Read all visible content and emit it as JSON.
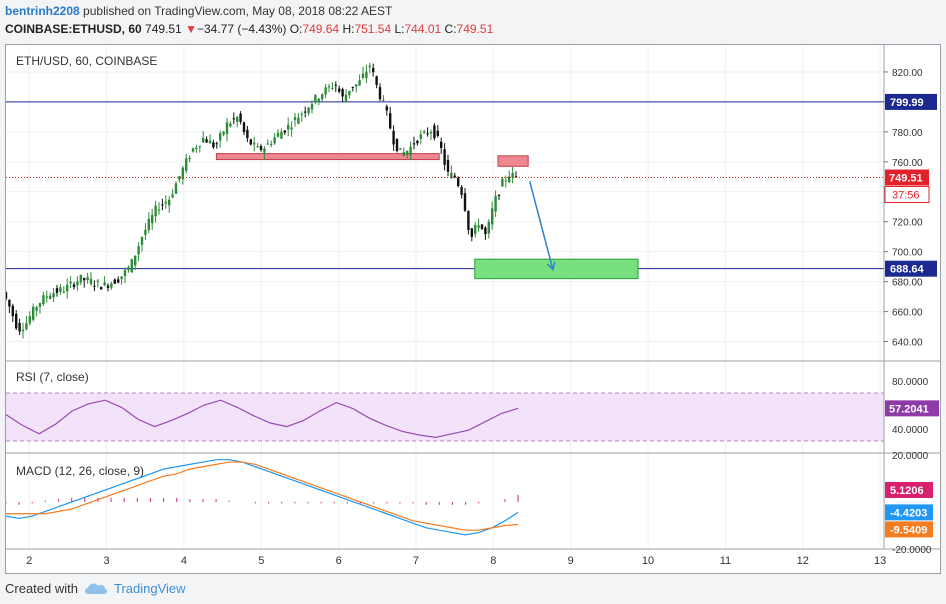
{
  "header": {
    "author": "bentrinh2208",
    "published_text": "published on TradingView.com, May 08, 2018 08:22 AEST",
    "symbol_line": "COINBASE:ETHUSD, 60",
    "last": "749.51",
    "change_arrow": "▼",
    "change": "−34.77 (−4.43%)",
    "o_label": "O:",
    "o": "749.64",
    "h_label": "H:",
    "h": "751.54",
    "l_label": "L:",
    "l": "744.01",
    "c_label": "C:",
    "c": "749.51"
  },
  "footer": {
    "created_with": "Created with",
    "brand": "TradingView"
  },
  "colors": {
    "up": "#2e8b3a",
    "down": "#111111",
    "level_line": "#1c2a8f",
    "support_zone": "#79e07f",
    "resistance_zone": "#f0868f",
    "arrow": "#2e7fd0",
    "rsi": "#9a4bb0",
    "rsi_band": "#f2e3fb",
    "macd": "#2196f3",
    "signal": "#f57c1f",
    "hist": "#d9499a",
    "price_tag": "#e3212b"
  },
  "chart_data": [
    {
      "type": "candlestick",
      "title": "ETH/USD, 60, COINBASE",
      "x_ticks": [
        "2",
        "3",
        "4",
        "5",
        "6",
        "7",
        "8",
        "9",
        "10",
        "11",
        "12",
        "13"
      ],
      "x_range": [
        1.7,
        13.05
      ],
      "y_ticks": [
        "640.00",
        "660.00",
        "680.00",
        "700.00",
        "720.00",
        "740.00",
        "760.00",
        "780.00",
        "800.00",
        "820.00"
      ],
      "ylim": [
        627,
        838
      ],
      "price_path": [
        [
          1.7,
          673
        ],
        [
          1.8,
          662
        ],
        [
          1.9,
          648
        ],
        [
          2.0,
          652
        ],
        [
          2.15,
          665
        ],
        [
          2.3,
          672
        ],
        [
          2.5,
          675
        ],
        [
          2.7,
          682
        ],
        [
          2.85,
          680
        ],
        [
          3.0,
          677
        ],
        [
          3.2,
          682
        ],
        [
          3.35,
          690
        ],
        [
          3.5,
          710
        ],
        [
          3.7,
          730
        ],
        [
          3.85,
          735
        ],
        [
          4.0,
          752
        ],
        [
          4.15,
          768
        ],
        [
          4.3,
          776
        ],
        [
          4.45,
          770
        ],
        [
          4.6,
          785
        ],
        [
          4.75,
          790
        ],
        [
          4.85,
          775
        ],
        [
          5.0,
          768
        ],
        [
          5.1,
          770
        ],
        [
          5.25,
          778
        ],
        [
          5.4,
          784
        ],
        [
          5.55,
          792
        ],
        [
          5.7,
          800
        ],
        [
          5.85,
          807
        ],
        [
          6.0,
          812
        ],
        [
          6.1,
          802
        ],
        [
          6.2,
          810
        ],
        [
          6.3,
          812
        ],
        [
          6.45,
          825
        ],
        [
          6.55,
          808
        ],
        [
          6.65,
          795
        ],
        [
          6.75,
          775
        ],
        [
          6.85,
          765
        ],
        [
          6.95,
          768
        ],
        [
          7.05,
          775
        ],
        [
          7.15,
          778
        ],
        [
          7.25,
          782
        ],
        [
          7.35,
          772
        ],
        [
          7.45,
          752
        ],
        [
          7.55,
          750
        ],
        [
          7.65,
          738
        ],
        [
          7.75,
          708
        ],
        [
          7.85,
          720
        ],
        [
          7.95,
          710
        ],
        [
          8.05,
          732
        ],
        [
          8.15,
          745
        ],
        [
          8.25,
          752
        ],
        [
          8.32,
          749.51
        ]
      ],
      "levels": [
        {
          "label": "799.99",
          "value": 799.99
        },
        {
          "label": "688.64",
          "value": 688.64
        }
      ],
      "last_price": {
        "label": "749.51",
        "value": 749.51
      },
      "countdown": "37:56",
      "zones": [
        {
          "kind": "resistance",
          "x1": 4.42,
          "x2": 7.3,
          "y1": 761.5,
          "y2": 765.5
        },
        {
          "kind": "support",
          "x1": 7.76,
          "x2": 9.87,
          "y1": 682,
          "y2": 695
        },
        {
          "kind": "resistance",
          "x1": 8.06,
          "x2": 8.45,
          "y1": 757,
          "y2": 764
        }
      ],
      "arrow": {
        "from": [
          8.47,
          747
        ],
        "to": [
          8.77,
          688
        ]
      }
    },
    {
      "type": "line",
      "title": "RSI (7, close)",
      "y_ticks": [
        "80.0000",
        "40.0000"
      ],
      "ylim": [
        20,
        95
      ],
      "band": [
        30,
        70
      ],
      "value_label": "57.2041",
      "series": [
        {
          "values": [
            52,
            43,
            36,
            44,
            55,
            61,
            64,
            58,
            48,
            42,
            47,
            53,
            60,
            64,
            58,
            51,
            45,
            42,
            47,
            55,
            62,
            57,
            49,
            43,
            38,
            35,
            33,
            36,
            39,
            46,
            53,
            57.2
          ]
        }
      ]
    },
    {
      "type": "line",
      "title": "MACD (12, 26, close, 9)",
      "y_ticks": [
        "20.0000",
        "-20.0000"
      ],
      "ylim": [
        -20,
        20
      ],
      "value_labels": [
        "5.1206",
        "-4.4203",
        "-9.5409"
      ],
      "series": [
        {
          "values": [
            -6,
            -7,
            -6,
            -4,
            -2,
            0,
            2,
            4,
            6,
            8,
            10,
            12,
            14,
            15,
            16,
            17,
            18,
            18,
            17,
            15,
            13,
            11,
            9,
            7,
            5,
            3,
            1,
            -1,
            -3,
            -5,
            -7,
            -9,
            -11,
            -12,
            -13,
            -14,
            -13,
            -11,
            -8,
            -4.42
          ]
        },
        {
          "values": [
            -5,
            -5,
            -5,
            -5,
            -4,
            -3,
            -1,
            1,
            3,
            5,
            7,
            9,
            11,
            12,
            14,
            15,
            16,
            17,
            17,
            16,
            14,
            12,
            10,
            8,
            6,
            4,
            2,
            0,
            -2,
            -4,
            -6,
            -8,
            -9,
            -10,
            -11,
            -12,
            -12,
            -11,
            -10,
            -9.54
          ]
        },
        {
          "values": [
            -1,
            -2,
            -1,
            1,
            2,
            3,
            3,
            3,
            3,
            3,
            3,
            3,
            3,
            3,
            2,
            2,
            2,
            1,
            0,
            -1,
            -1,
            -1,
            -1,
            -1,
            -1,
            -1,
            -1,
            -1,
            -1,
            -1,
            -1,
            -1,
            -2,
            -2,
            -2,
            -2,
            -1,
            0,
            2,
            5.12
          ]
        }
      ]
    }
  ]
}
